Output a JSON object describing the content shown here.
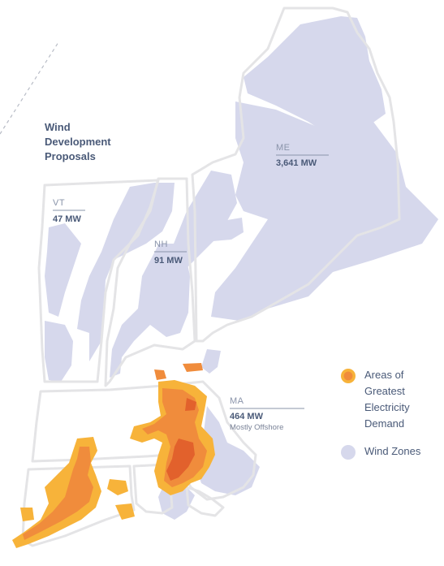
{
  "title": {
    "lines": [
      "Wind",
      "Development",
      "Proposals"
    ]
  },
  "regions": [
    {
      "id": "vt",
      "abbr": "VT",
      "mw": "47 MW",
      "note": ""
    },
    {
      "id": "nh",
      "abbr": "NH",
      "mw": "91 MW",
      "note": ""
    },
    {
      "id": "me",
      "abbr": "ME",
      "mw": "3,641 MW",
      "note": ""
    },
    {
      "id": "ma",
      "abbr": "MA",
      "mw": "464 MW",
      "note": "Mostly Offshore"
    }
  ],
  "legend": {
    "demand": "Areas of Greatest Electricity Demand",
    "wind": "Wind Zones"
  },
  "colors": {
    "wind_zone": "#d6d8ec",
    "state_outline": "#e4e4e6",
    "demand_outer": "#f7b33a",
    "demand_mid": "#f08c3c",
    "demand_core": "#e2612c",
    "text_dark": "#4a5a78",
    "text_light": "#8a94aa"
  }
}
